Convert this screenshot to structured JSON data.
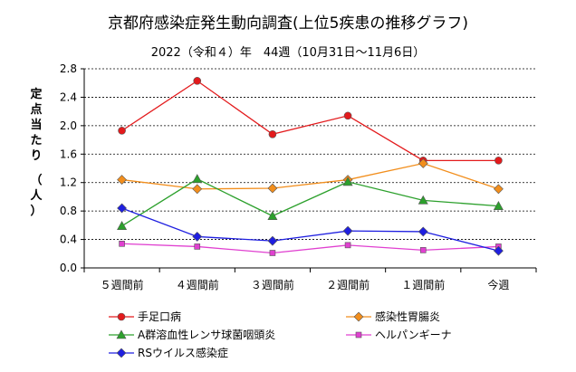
{
  "chart_data": {
    "type": "line",
    "title": "京都府感染症発生動向調査(上位5疾患の推移グラフ)",
    "subtitle": "2022（令和４）年　44週（10月31日～11月6日）",
    "ylabel": "定点当たり　（人）",
    "categories": [
      "５週間前",
      "４週間前",
      "３週間前",
      "２週間前",
      "１週間前",
      "今週"
    ],
    "ylim": [
      0,
      2.8
    ],
    "yticks": [
      "0.0",
      "0.4",
      "0.8",
      "1.2",
      "1.6",
      "2.0",
      "2.4",
      "2.8"
    ],
    "grid": true,
    "legend_position": "bottom",
    "series": [
      {
        "name": "手足口病",
        "color": "#e31a1c",
        "marker": "circle",
        "values": [
          1.93,
          2.63,
          1.88,
          2.14,
          1.51,
          1.51
        ]
      },
      {
        "name": "感染性胃腸炎",
        "color": "#f28e1c",
        "marker": "diamond",
        "values": [
          1.24,
          1.11,
          1.12,
          1.24,
          1.47,
          1.11
        ]
      },
      {
        "name": "A群溶血性レンサ球菌咽頭炎",
        "color": "#2ca02c",
        "marker": "triangle",
        "values": [
          0.59,
          1.25,
          0.73,
          1.21,
          0.95,
          0.87
        ]
      },
      {
        "name": "ヘルパンギーナ",
        "color": "#e040d0",
        "marker": "square",
        "values": [
          0.34,
          0.3,
          0.21,
          0.32,
          0.25,
          0.3
        ]
      },
      {
        "name": "RSウイルス感染症",
        "color": "#1f1fe0",
        "marker": "diamond",
        "values": [
          0.84,
          0.44,
          0.38,
          0.52,
          0.51,
          0.24
        ]
      }
    ]
  }
}
